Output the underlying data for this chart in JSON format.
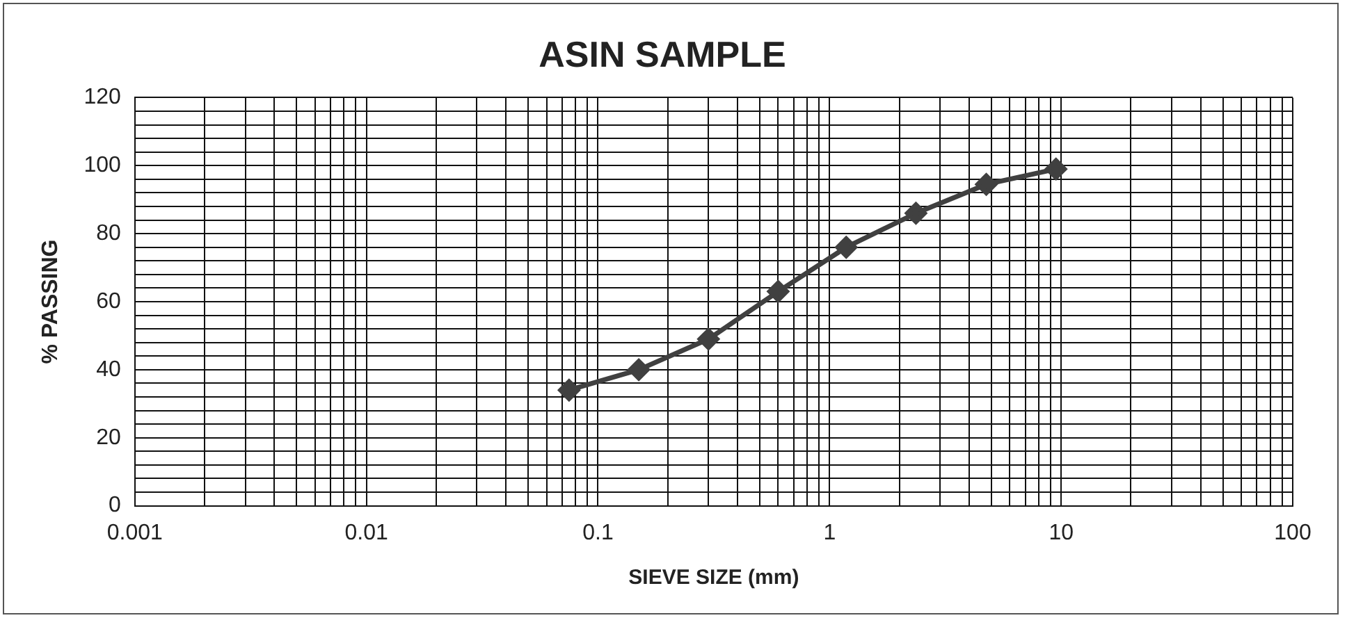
{
  "chart_data": {
    "type": "line",
    "title": "ASIN SAMPLE",
    "xlabel": "SIEVE SIZE (mm)",
    "ylabel": "% PASSING",
    "x": [
      0.075,
      0.15,
      0.3,
      0.6,
      1.18,
      2.36,
      4.75,
      9.5
    ],
    "series": [
      {
        "color": "#404040",
        "values": [
          34,
          40,
          49,
          63,
          76,
          86,
          94.5,
          99
        ]
      }
    ],
    "log": "x",
    "xlim": [
      0.001,
      100
    ],
    "ylim": [
      0,
      120
    ],
    "xticks": [
      0.001,
      {
        "value": 0.002,
        "label": null
      },
      {
        "value": 0.003,
        "label": null
      },
      {
        "value": 0.004,
        "label": null
      },
      {
        "value": 0.005,
        "label": null
      },
      {
        "value": 0.006,
        "label": null
      },
      {
        "value": 0.007,
        "label": null
      },
      {
        "value": 0.008,
        "label": null
      },
      {
        "value": 0.009,
        "label": null
      },
      0.01,
      {
        "value": 0.02,
        "label": null
      },
      {
        "value": 0.03,
        "label": null
      },
      {
        "value": 0.04,
        "label": null
      },
      {
        "value": 0.05,
        "label": null
      },
      {
        "value": 0.06,
        "label": null
      },
      {
        "value": 0.07,
        "label": null
      },
      {
        "value": 0.08,
        "label": null
      },
      {
        "value": 0.09,
        "label": null
      },
      0.1,
      {
        "value": 0.2,
        "label": null
      },
      {
        "value": 0.3,
        "label": null
      },
      {
        "value": 0.4,
        "label": null
      },
      {
        "value": 0.5,
        "label": null
      },
      {
        "value": 0.6,
        "label": null
      },
      {
        "value": 0.7,
        "label": null
      },
      {
        "value": 0.8,
        "label": null
      },
      {
        "value": 0.9,
        "label": null
      },
      1,
      {
        "value": 2,
        "label": null
      },
      {
        "value": 3,
        "label": null
      },
      {
        "value": 4,
        "label": null
      },
      {
        "value": 5,
        "label": null
      },
      {
        "value": 6,
        "label": null
      },
      {
        "value": 7,
        "label": null
      },
      {
        "value": 8,
        "label": null
      },
      {
        "value": 9,
        "label": null
      },
      10,
      {
        "value": 20,
        "label": null
      },
      {
        "value": 30,
        "label": null
      },
      {
        "value": 40,
        "label": null
      },
      {
        "value": 50,
        "label": null
      },
      {
        "value": 60,
        "label": null
      },
      {
        "value": 70,
        "label": null
      },
      {
        "value": 80,
        "label": null
      },
      {
        "value": 90,
        "label": null
      },
      100
    ],
    "yticks": [
      0,
      {
        "value": 4,
        "label": null
      },
      {
        "value": 8,
        "label": null
      },
      {
        "value": 12,
        "label": null
      },
      {
        "value": 16,
        "label": null
      },
      20,
      {
        "value": 24,
        "label": null
      },
      {
        "value": 28,
        "label": null
      },
      {
        "value": 32,
        "label": null
      },
      {
        "value": 36,
        "label": null
      },
      40,
      {
        "value": 44,
        "label": null
      },
      {
        "value": 48,
        "label": null
      },
      {
        "value": 52,
        "label": null
      },
      {
        "value": 56,
        "label": null
      },
      60,
      {
        "value": 64,
        "label": null
      },
      {
        "value": 68,
        "label": null
      },
      {
        "value": 72,
        "label": null
      },
      {
        "value": 76,
        "label": null
      },
      80,
      {
        "value": 84,
        "label": null
      },
      {
        "value": 88,
        "label": null
      },
      {
        "value": 92,
        "label": null
      },
      {
        "value": 96,
        "label": null
      },
      100,
      {
        "value": 104,
        "label": null
      },
      {
        "value": 108,
        "label": null
      },
      {
        "value": 112,
        "label": null
      },
      {
        "value": 116,
        "label": null
      },
      120
    ],
    "grid": true,
    "legend": false,
    "marker": "diamond",
    "line_style": "solid"
  }
}
